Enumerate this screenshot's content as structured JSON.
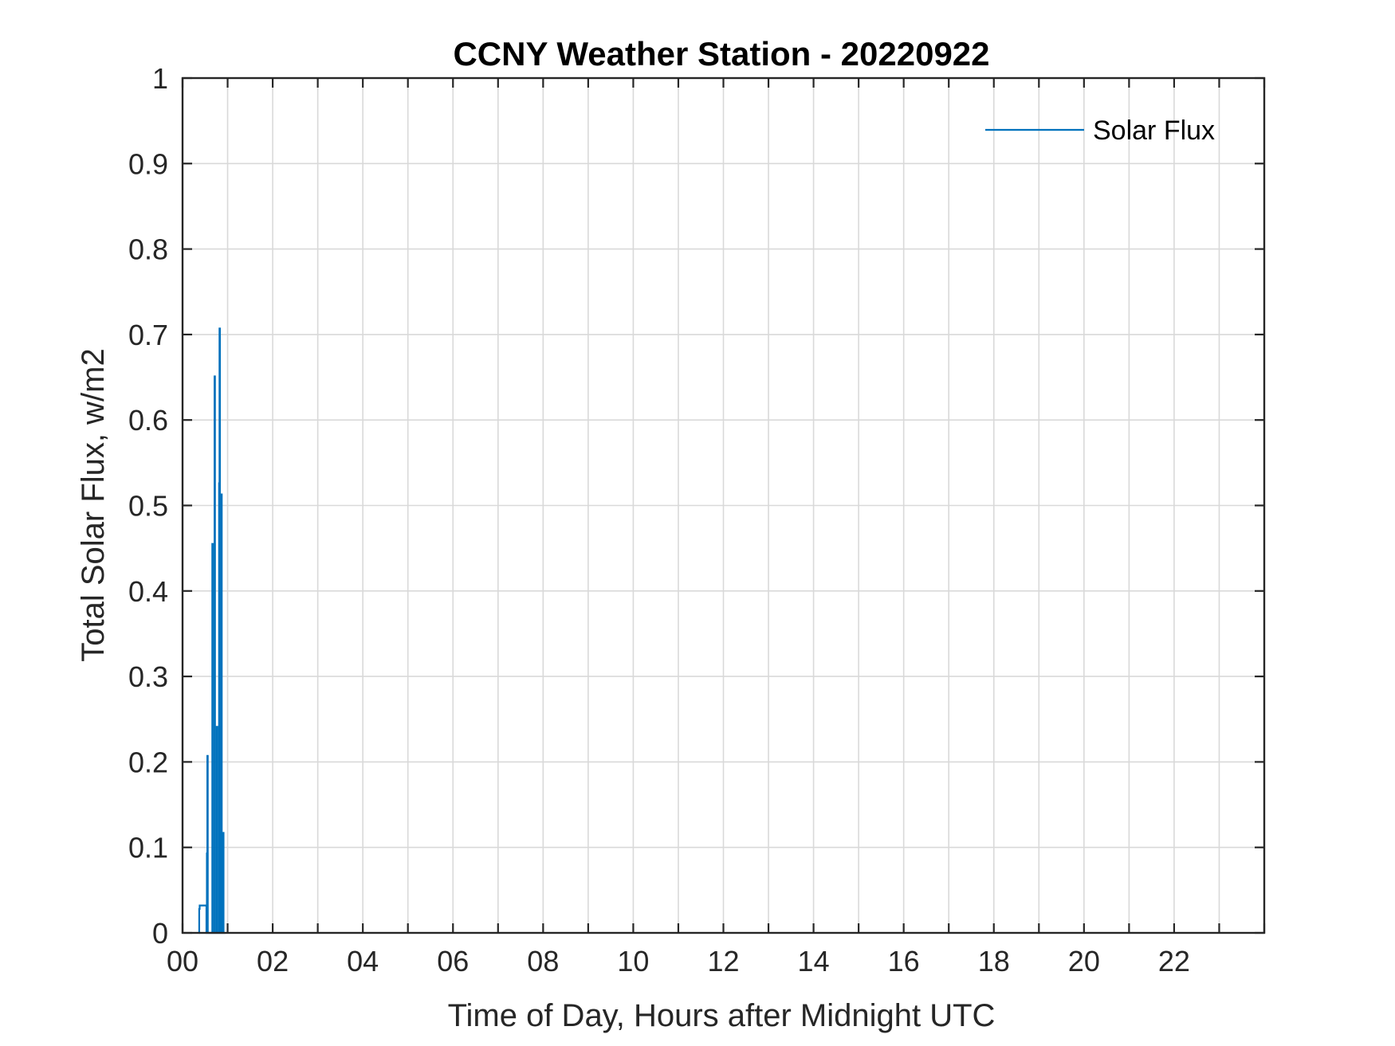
{
  "chart_data": {
    "type": "line",
    "title": "CCNY Weather Station - 20220922",
    "xlabel": "Time of Day, Hours after Midnight UTC",
    "ylabel": "Total Solar Flux, w/m2",
    "xlim": [
      0,
      24
    ],
    "ylim": [
      0,
      1
    ],
    "x_ticks": [
      0,
      2,
      4,
      6,
      8,
      10,
      12,
      14,
      16,
      18,
      20,
      22
    ],
    "x_tick_labels": [
      "00",
      "02",
      "04",
      "06",
      "08",
      "10",
      "12",
      "14",
      "16",
      "18",
      "20",
      "22"
    ],
    "x_minor_grid_step": 1,
    "y_ticks": [
      0,
      0.1,
      0.2,
      0.3,
      0.4,
      0.5,
      0.6,
      0.7,
      0.8,
      0.9,
      1
    ],
    "y_tick_labels": [
      "0",
      "0.1",
      "0.2",
      "0.3",
      "0.4",
      "0.5",
      "0.6",
      "0.7",
      "0.8",
      "0.9",
      "1"
    ],
    "grid": true,
    "legend_position": "top-right",
    "series": [
      {
        "name": "Solar Flux",
        "color": "#0072bd",
        "x": [
          0.36,
          0.37,
          0.37,
          0.38,
          0.38,
          0.53,
          0.53,
          0.54,
          0.54,
          0.55,
          0.55,
          0.56,
          0.56,
          0.66,
          0.66,
          0.67,
          0.67,
          0.71,
          0.71,
          0.72,
          0.72,
          0.76,
          0.76,
          0.77,
          0.77,
          0.81,
          0.81,
          0.82,
          0.82,
          0.83,
          0.83,
          0.84,
          0.84,
          0.87,
          0.87,
          0.88,
          0.88,
          0.91,
          0.91,
          0.92,
          0.92,
          0.95
        ],
        "y": [
          0,
          0,
          0.028,
          0.028,
          0.032,
          0.032,
          0,
          0,
          0.093,
          0.093,
          0.207,
          0.207,
          0,
          0,
          0.455,
          0.455,
          0,
          0,
          0.651,
          0.651,
          0,
          0,
          0.241,
          0.241,
          0,
          0,
          0.526,
          0.526,
          0.707,
          0.707,
          0,
          0,
          0.513,
          0.513,
          0,
          0,
          0.117,
          0.117,
          0,
          0,
          0,
          0
        ]
      }
    ]
  }
}
